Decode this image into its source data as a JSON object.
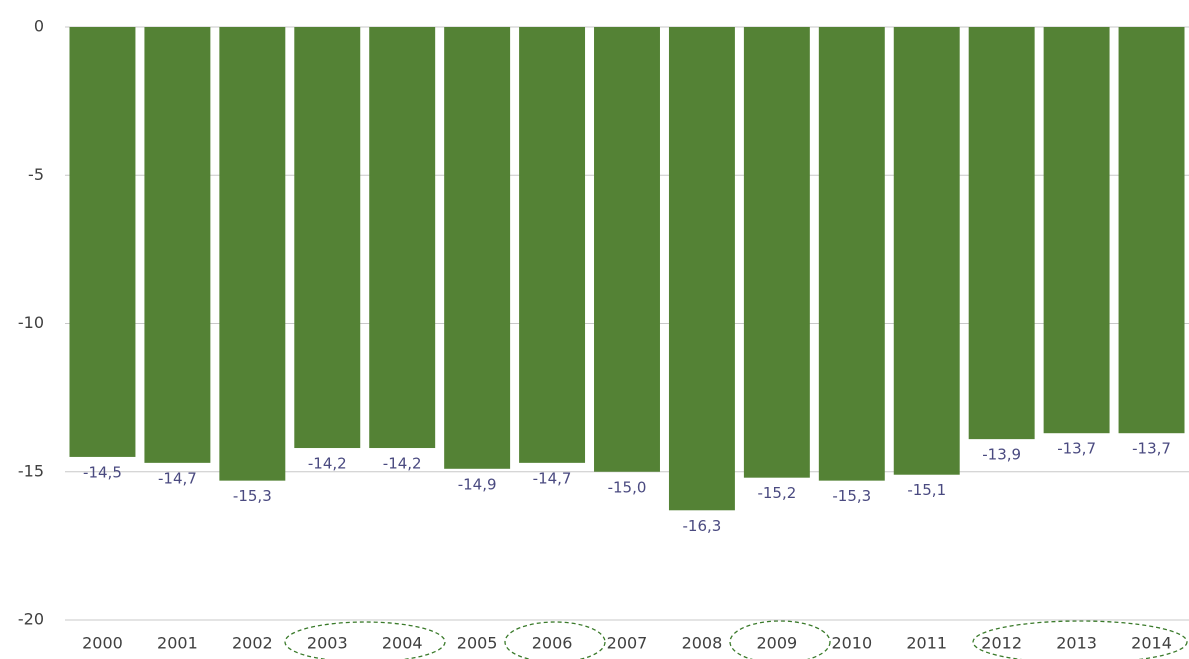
{
  "chart_data": {
    "type": "bar",
    "categories": [
      "2000",
      "2001",
      "2002",
      "2003",
      "2004",
      "2005",
      "2006",
      "2007",
      "2008",
      "2009",
      "2010",
      "2011",
      "2012",
      "2013",
      "2014"
    ],
    "values": [
      -14.5,
      -14.7,
      -15.3,
      -14.2,
      -14.2,
      -14.9,
      -14.7,
      -15.0,
      -16.3,
      -15.2,
      -15.3,
      -15.1,
      -13.9,
      -13.7,
      -13.7
    ],
    "value_labels": [
      "-14,5",
      "-14,7",
      "-15,3",
      "-14,2",
      "-14,2",
      "-14,9",
      "-14,7",
      "-15,0",
      "-16,3",
      "-15,2",
      "-15,3",
      "-15,1",
      "-13,9",
      "-13,7",
      "-13,7"
    ],
    "color": "#548235",
    "ylim": [
      -20,
      0
    ],
    "yticks": [
      0,
      -5,
      -10,
      -15,
      -20
    ],
    "grid": true
  }
}
